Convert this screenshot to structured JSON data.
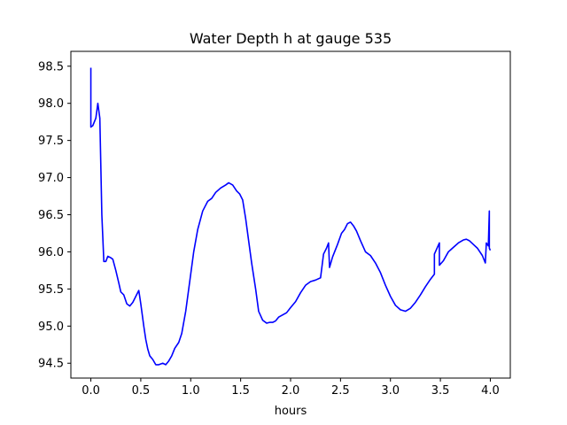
{
  "chart_data": {
    "type": "line",
    "title": "Water Depth h at gauge 535",
    "xlabel": "hours",
    "ylabel": "",
    "xlim": [
      -0.2,
      4.2
    ],
    "ylim": [
      94.3,
      98.7
    ],
    "xticks": [
      0.0,
      0.5,
      1.0,
      1.5,
      2.0,
      2.5,
      3.0,
      3.5,
      4.0
    ],
    "xtick_labels": [
      "0.0",
      "0.5",
      "1.0",
      "1.5",
      "2.0",
      "2.5",
      "3.0",
      "3.5",
      "4.0"
    ],
    "yticks": [
      94.5,
      95.0,
      95.5,
      96.0,
      96.5,
      97.0,
      97.5,
      98.0,
      98.5
    ],
    "ytick_labels": [
      "94.5",
      "95.0",
      "95.5",
      "96.0",
      "96.5",
      "97.0",
      "97.5",
      "98.0",
      "98.5"
    ],
    "grid": false,
    "series": [
      {
        "color": "#0000ff",
        "x": [
          0.0,
          0.0,
          0.02,
          0.05,
          0.07,
          0.09,
          0.11,
          0.13,
          0.15,
          0.17,
          0.2,
          0.22,
          0.25,
          0.28,
          0.3,
          0.33,
          0.36,
          0.39,
          0.42,
          0.45,
          0.48,
          0.5,
          0.53,
          0.55,
          0.57,
          0.59,
          0.62,
          0.65,
          0.68,
          0.72,
          0.75,
          0.78,
          0.81,
          0.84,
          0.88,
          0.91,
          0.95,
          0.99,
          1.03,
          1.07,
          1.12,
          1.17,
          1.21,
          1.25,
          1.3,
          1.35,
          1.38,
          1.42,
          1.46,
          1.49,
          1.52,
          1.55,
          1.58,
          1.61,
          1.65,
          1.68,
          1.72,
          1.76,
          1.79,
          1.82,
          1.85,
          1.88,
          1.92,
          1.96,
          2.0,
          2.05,
          2.1,
          2.15,
          2.2,
          2.25,
          2.3,
          2.33,
          2.36,
          2.38,
          2.39,
          2.42,
          2.47,
          2.51,
          2.54,
          2.57,
          2.6,
          2.63,
          2.66,
          2.7,
          2.75,
          2.8,
          2.85,
          2.9,
          2.95,
          3.0,
          3.05,
          3.1,
          3.15,
          3.2,
          3.25,
          3.3,
          3.35,
          3.4,
          3.44,
          3.44,
          3.49,
          3.49,
          3.53,
          3.58,
          3.63,
          3.68,
          3.73,
          3.76,
          3.79,
          3.83,
          3.87,
          3.92,
          3.95,
          3.96,
          3.98,
          3.99,
          3.99,
          4.0
        ],
        "y": [
          98.48,
          97.68,
          97.7,
          97.8,
          98.0,
          97.8,
          96.5,
          95.87,
          95.87,
          95.94,
          95.92,
          95.9,
          95.75,
          95.58,
          95.46,
          95.42,
          95.3,
          95.27,
          95.32,
          95.4,
          95.48,
          95.3,
          95.0,
          94.82,
          94.69,
          94.6,
          94.55,
          94.48,
          94.48,
          94.5,
          94.48,
          94.53,
          94.6,
          94.7,
          94.78,
          94.9,
          95.2,
          95.6,
          96.0,
          96.3,
          96.55,
          96.68,
          96.72,
          96.8,
          96.86,
          96.9,
          96.93,
          96.9,
          96.82,
          96.78,
          96.7,
          96.45,
          96.15,
          95.85,
          95.5,
          95.2,
          95.08,
          95.04,
          95.05,
          95.05,
          95.07,
          95.12,
          95.15,
          95.18,
          95.25,
          95.33,
          95.45,
          95.55,
          95.6,
          95.62,
          95.65,
          95.97,
          96.05,
          96.12,
          95.79,
          95.93,
          96.1,
          96.25,
          96.3,
          96.38,
          96.4,
          96.35,
          96.28,
          96.15,
          96.0,
          95.95,
          95.85,
          95.72,
          95.55,
          95.4,
          95.28,
          95.22,
          95.2,
          95.24,
          95.32,
          95.42,
          95.53,
          95.63,
          95.7,
          95.97,
          96.12,
          95.82,
          95.88,
          96.0,
          96.06,
          96.12,
          96.16,
          96.17,
          96.15,
          96.1,
          96.05,
          95.95,
          95.85,
          96.12,
          96.08,
          96.55,
          96.05,
          96.02
        ]
      }
    ]
  }
}
